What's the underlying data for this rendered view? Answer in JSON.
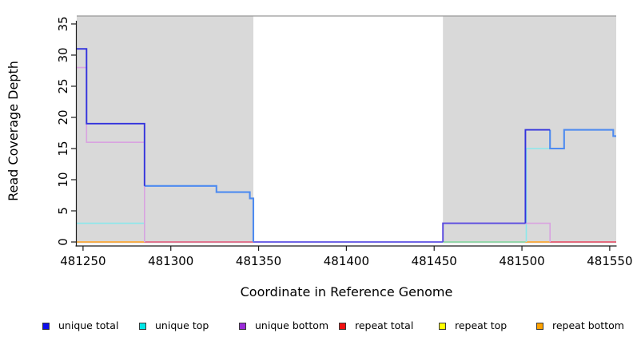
{
  "chart_data": {
    "type": "line",
    "step": true,
    "title": "",
    "xlabel": "Coordinate in Reference Genome",
    "ylabel": "Read Coverage Depth",
    "xlim": [
      481246.4,
      481553.7
    ],
    "ylim": [
      -0.64,
      36.28
    ],
    "x_ticks": [
      481250,
      481300,
      481350,
      481400,
      481450,
      481500,
      481550
    ],
    "y_ticks": [
      0,
      5,
      10,
      15,
      20,
      25,
      30,
      35
    ],
    "grid": false,
    "legend_position": "bottom",
    "background": "#ffffff",
    "plot_top_border_color": "#999999",
    "axis_color": "#1a1a1a",
    "tick_label_color": "#000000",
    "shaded_regions": [
      {
        "label": "shaded-region-left",
        "x0": 481246.4,
        "x1": 481347.0,
        "color": "#d9d9d9"
      },
      {
        "label": "shaded-region-right",
        "x0": 481455.0,
        "x1": 481553.7,
        "color": "#d9d9d9"
      }
    ],
    "series": [
      {
        "name": "unique total",
        "color": "#0f0fee",
        "steps": [
          [
            481246,
            31
          ],
          [
            481252,
            19
          ],
          [
            481285,
            9
          ],
          [
            481326,
            8
          ],
          [
            481345,
            7
          ],
          [
            481347,
            0
          ],
          [
            481455,
            3
          ],
          [
            481502,
            18
          ],
          [
            481516,
            15
          ],
          [
            481524,
            18
          ],
          [
            481552,
            17
          ],
          [
            481554,
            17
          ]
        ]
      },
      {
        "name": "unique top",
        "color": "#00e6e6",
        "steps": [
          [
            481246,
            3
          ],
          [
            481285,
            9
          ],
          [
            481326,
            8
          ],
          [
            481345,
            7
          ],
          [
            481347,
            0
          ],
          [
            481502,
            15
          ],
          [
            481524,
            18
          ],
          [
            481552,
            17
          ],
          [
            481554,
            17
          ]
        ]
      },
      {
        "name": "unique bottom",
        "color": "#9a2cd8",
        "steps": [
          [
            481246,
            28
          ],
          [
            481252,
            16
          ],
          [
            481285,
            0
          ],
          [
            481455,
            3
          ],
          [
            481516,
            0
          ],
          [
            481554,
            0
          ]
        ]
      },
      {
        "name": "repeat total",
        "color": "#f01010",
        "steps": [
          [
            481246,
            0
          ],
          [
            481554,
            0
          ]
        ]
      },
      {
        "name": "repeat top",
        "color": "#ffff00",
        "steps": [
          [
            481246,
            0
          ],
          [
            481554,
            0
          ]
        ]
      },
      {
        "name": "repeat bottom",
        "color": "#ffa200",
        "steps": [
          [
            481246,
            0
          ],
          [
            481554,
            0
          ]
        ]
      }
    ],
    "render_polylines": [
      {
        "name": "baseline-repeat-bottom-left",
        "color": "#ffa01e",
        "w": 1.6,
        "pts": [
          [
            481246.4,
            0
          ],
          [
            481285,
            0
          ]
        ]
      },
      {
        "name": "baseline-repeat-total-left",
        "color": "#e25677",
        "w": 1.6,
        "pts": [
          [
            481285,
            0
          ],
          [
            481347,
            0
          ]
        ]
      },
      {
        "name": "baseline-unique-gap",
        "color": "#5b4fe2",
        "w": 1.7,
        "pts": [
          [
            481347,
            0
          ],
          [
            481455,
            0
          ]
        ]
      },
      {
        "name": "baseline-green-blend",
        "color": "#7fd69b",
        "w": 1.6,
        "pts": [
          [
            481455,
            0
          ],
          [
            481502,
            0
          ]
        ]
      },
      {
        "name": "baseline-repeat-bottom-right",
        "color": "#ffa01e",
        "w": 1.6,
        "pts": [
          [
            481502,
            0
          ],
          [
            481516,
            0
          ]
        ]
      },
      {
        "name": "baseline-repeat-total-right",
        "color": "#e8465f",
        "w": 1.6,
        "pts": [
          [
            481516,
            0
          ],
          [
            481553.7,
            0
          ]
        ]
      },
      {
        "name": "unique-top-left",
        "color": "#8ae8ec",
        "w": 1.6,
        "pts": [
          [
            481246.4,
            3
          ],
          [
            481285,
            3
          ],
          [
            481285,
            0
          ]
        ]
      },
      {
        "name": "unique-top-right",
        "color": "#8ae8ec",
        "w": 1.6,
        "pts": [
          [
            481502.5,
            0
          ],
          [
            481502.5,
            15
          ],
          [
            481516,
            15
          ]
        ]
      },
      {
        "name": "unique-bottom-left",
        "color": "#d9a3e0",
        "w": 1.6,
        "pts": [
          [
            481246.4,
            28
          ],
          [
            481252,
            28
          ],
          [
            481252,
            16
          ],
          [
            481285,
            16
          ],
          [
            481285,
            0
          ]
        ]
      },
      {
        "name": "unique-bottom-right",
        "color": "#d9a3e0",
        "w": 1.6,
        "pts": [
          [
            481455,
            0
          ],
          [
            481455,
            3
          ],
          [
            481516,
            3
          ],
          [
            481516,
            0
          ]
        ]
      },
      {
        "name": "unique-total-violet-blend",
        "color": "#5a4ce0",
        "w": 1.9,
        "pts": [
          [
            481455,
            0
          ],
          [
            481455,
            3
          ],
          [
            481502,
            3
          ]
        ]
      },
      {
        "name": "unique-total-blend-left",
        "color": "#4e8bf0",
        "w": 2.1,
        "pts": [
          [
            481285,
            9
          ],
          [
            481326,
            9
          ],
          [
            481326,
            8
          ],
          [
            481345,
            8
          ],
          [
            481345,
            7
          ],
          [
            481347,
            7
          ],
          [
            481347,
            0
          ]
        ]
      },
      {
        "name": "unique-total-blend-right",
        "color": "#4e8bf0",
        "w": 2.1,
        "pts": [
          [
            481516,
            18
          ],
          [
            481516,
            15
          ],
          [
            481524,
            15
          ],
          [
            481524,
            18
          ],
          [
            481552,
            18
          ],
          [
            481552,
            17
          ],
          [
            481553.7,
            17
          ]
        ]
      },
      {
        "name": "unique-total-left",
        "color": "#3333dd",
        "w": 1.9,
        "pts": [
          [
            481246.4,
            31
          ],
          [
            481252,
            31
          ],
          [
            481252,
            19
          ],
          [
            481285,
            19
          ],
          [
            481285,
            9
          ]
        ]
      },
      {
        "name": "unique-total-right",
        "color": "#3333dd",
        "w": 1.9,
        "pts": [
          [
            481502,
            3
          ],
          [
            481502,
            18
          ],
          [
            481516,
            18
          ]
        ]
      }
    ]
  },
  "legend": {
    "items": [
      {
        "label": "unique total",
        "color": "#0f0fee"
      },
      {
        "label": "unique top",
        "color": "#00e6e6"
      },
      {
        "label": "unique bottom",
        "color": "#9a2cd8"
      },
      {
        "label": "repeat total",
        "color": "#f01010"
      },
      {
        "label": "repeat top",
        "color": "#ffff00"
      },
      {
        "label": "repeat bottom",
        "color": "#ffa200"
      }
    ]
  }
}
